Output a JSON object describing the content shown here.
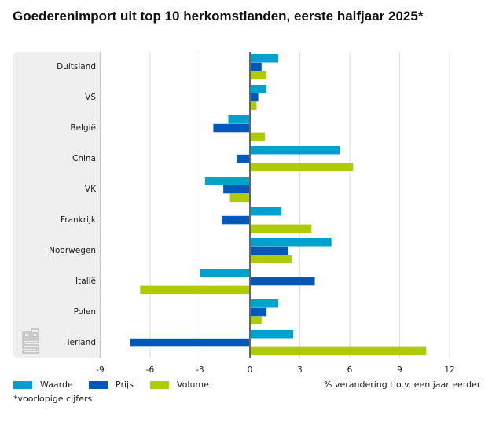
{
  "title": "Goederenimport uit top 10 herkomstlanden, eerste halfjaar 2025*",
  "footnote": "*voorlopige cijfers",
  "colors": {
    "waarde": "#00a1cd",
    "prijs": "#0058b8",
    "volume": "#afcb05",
    "axis": "#666666",
    "grid": "#e2e2e2"
  },
  "chart_data": {
    "type": "bar",
    "orientation": "horizontal",
    "title": "Goederenimport uit top 10 herkomstlanden, eerste halfjaar 2025*",
    "xlabel": "% verandering t.o.v. een jaar eerder",
    "ylabel": "",
    "xlim": [
      -9,
      12
    ],
    "xticks": [
      -9,
      -6,
      -3,
      0,
      3,
      6,
      9,
      12
    ],
    "xtick_labels": [
      "-9",
      "-6",
      "-3",
      "0",
      "3",
      "6",
      "9",
      "12"
    ],
    "grid": true,
    "legend_position": "bottom-left",
    "categories": [
      "Duitsland",
      "VS",
      "België",
      "China",
      "VK",
      "Frankrijk",
      "Noorwegen",
      "Italië",
      "Polen",
      "Ierland"
    ],
    "series": [
      {
        "name": "Waarde",
        "key": "waarde",
        "values": [
          1.7,
          1.0,
          -1.3,
          5.4,
          -2.7,
          1.9,
          4.9,
          -3.0,
          1.7,
          2.6
        ]
      },
      {
        "name": "Prijs",
        "key": "prijs",
        "values": [
          0.7,
          0.5,
          -2.2,
          -0.8,
          -1.6,
          -1.7,
          2.3,
          3.9,
          1.0,
          -7.2
        ]
      },
      {
        "name": "Volume",
        "key": "volume",
        "values": [
          1.0,
          0.4,
          0.9,
          6.2,
          -1.2,
          3.7,
          2.5,
          -6.6,
          0.7,
          10.6
        ]
      }
    ]
  }
}
